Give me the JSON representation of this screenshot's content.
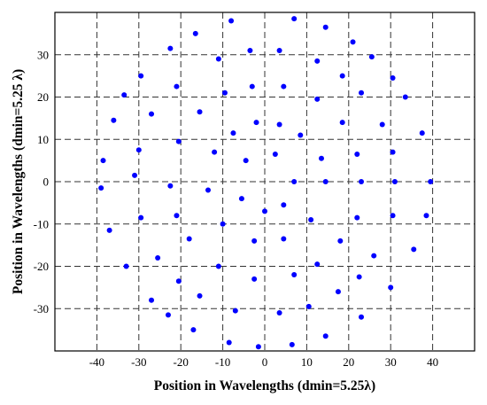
{
  "chart_data": {
    "type": "scatter",
    "title": "",
    "xlabel": "Position in Wavelengths (dmin=5.25λ)",
    "ylabel": "Position in Wavelengths (dmin=5.25 λ)",
    "xlim": [
      -50,
      50
    ],
    "ylim": [
      -40,
      40
    ],
    "xticks": [
      -40,
      -30,
      -20,
      -10,
      0,
      10,
      20,
      30,
      40
    ],
    "yticks": [
      -30,
      -20,
      -10,
      0,
      10,
      20,
      30
    ],
    "grid": true,
    "grid_style": "dashed",
    "marker_color": "#0000ff",
    "series": [
      {
        "points": [
          [
            -8,
            38
          ],
          [
            7,
            38.5
          ],
          [
            14.5,
            36.5
          ],
          [
            -16.5,
            35
          ],
          [
            21,
            33
          ],
          [
            -22.5,
            31.5
          ],
          [
            -3.5,
            31
          ],
          [
            3.5,
            31
          ],
          [
            -11,
            29
          ],
          [
            12.5,
            28.5
          ],
          [
            25.5,
            29.5
          ],
          [
            -29.5,
            25
          ],
          [
            18.5,
            25
          ],
          [
            30.5,
            24.5
          ],
          [
            -21,
            22.5
          ],
          [
            -3,
            22.5
          ],
          [
            4.5,
            22.5
          ],
          [
            -9.5,
            21
          ],
          [
            23,
            21
          ],
          [
            33.5,
            20
          ],
          [
            -33.5,
            20.5
          ],
          [
            12.5,
            19.5
          ],
          [
            -27,
            16
          ],
          [
            -15.5,
            16.5
          ],
          [
            -36,
            14.5
          ],
          [
            -2,
            14
          ],
          [
            3.5,
            13.5
          ],
          [
            18.5,
            14
          ],
          [
            28,
            13.5
          ],
          [
            -7.5,
            11.5
          ],
          [
            8.5,
            11
          ],
          [
            37.5,
            11.5
          ],
          [
            -20.5,
            9.5
          ],
          [
            -30,
            7.5
          ],
          [
            -12,
            7
          ],
          [
            2.5,
            6.5
          ],
          [
            22,
            6.5
          ],
          [
            30.5,
            7
          ],
          [
            -38.5,
            5
          ],
          [
            -4.5,
            5
          ],
          [
            13.5,
            5.5
          ],
          [
            -31,
            1.5
          ],
          [
            7,
            0
          ],
          [
            14.5,
            0
          ],
          [
            23,
            0
          ],
          [
            31,
            0
          ],
          [
            39.5,
            0
          ],
          [
            -39,
            -1.5
          ],
          [
            -22.5,
            -1
          ],
          [
            -13.5,
            -2
          ],
          [
            -5.5,
            -4
          ],
          [
            4.5,
            -5.5
          ],
          [
            0,
            -7
          ],
          [
            -21,
            -8
          ],
          [
            22,
            -8.5
          ],
          [
            30.5,
            -8
          ],
          [
            38.5,
            -8
          ],
          [
            -29.5,
            -8.5
          ],
          [
            -10,
            -10
          ],
          [
            11,
            -9
          ]
        ]
      },
      {
        "points": [
          [
            -37,
            -11.5
          ],
          [
            -18,
            -13.5
          ],
          [
            -2.5,
            -14
          ],
          [
            4.5,
            -13.5
          ],
          [
            18,
            -14
          ],
          [
            35.5,
            -16
          ],
          [
            -25.5,
            -18
          ],
          [
            26,
            -17.5
          ],
          [
            -33,
            -20
          ],
          [
            -11,
            -20
          ],
          [
            12.5,
            -19.5
          ],
          [
            -20.5,
            -23.5
          ],
          [
            -2.5,
            -23
          ],
          [
            7,
            -22
          ],
          [
            22.5,
            -22.5
          ],
          [
            -15.5,
            -27
          ],
          [
            30,
            -25
          ],
          [
            17.5,
            -26
          ],
          [
            -27,
            -28
          ],
          [
            -23,
            -31.5
          ],
          [
            -7,
            -30.5
          ],
          [
            10.5,
            -29.5
          ],
          [
            3.5,
            -31
          ],
          [
            23,
            -32
          ],
          [
            -17,
            -35
          ],
          [
            14.5,
            -36.5
          ],
          [
            -8.5,
            -38
          ],
          [
            -1.5,
            -39
          ],
          [
            6.5,
            -38.5
          ]
        ]
      }
    ]
  }
}
